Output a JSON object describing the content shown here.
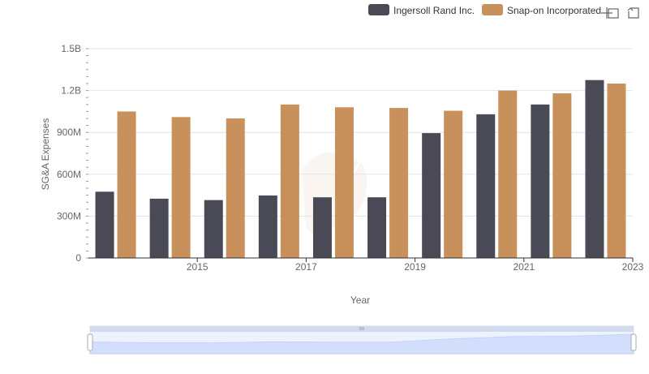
{
  "legend": {
    "items": [
      {
        "name": "Ingersoll Rand Inc.",
        "color": "#4a4a57"
      },
      {
        "name": "Snap-on Incorporated",
        "color": "#c8915c"
      }
    ]
  },
  "toolbox": {
    "icons": [
      "zoom-icon",
      "restore-icon"
    ]
  },
  "chart_data": {
    "type": "bar",
    "xlabel": "Year",
    "ylabel": "SG&A Expenses",
    "categories": [
      "2014",
      "2015",
      "2016",
      "2017",
      "2018",
      "2019",
      "2020",
      "2021",
      "2022",
      "2023"
    ],
    "x_tick_labels": [
      "2015",
      "2017",
      "2019",
      "2021",
      "2023"
    ],
    "y_tick_labels": [
      "0",
      "300M",
      "600M",
      "900M",
      "1.2B",
      "1.5B"
    ],
    "ylim": [
      0,
      1500000000
    ],
    "grid": true,
    "legend_position": "top-right",
    "series": [
      {
        "name": "Ingersoll Rand Inc.",
        "color": "#4a4a57",
        "values": [
          475000000,
          425000000,
          415000000,
          448000000,
          435000000,
          435000000,
          895000000,
          1030000000,
          1100000000,
          1275000000
        ]
      },
      {
        "name": "Snap-on Incorporated",
        "color": "#c8915c",
        "values": [
          1050000000,
          1010000000,
          1000000000,
          1100000000,
          1080000000,
          1075000000,
          1055000000,
          1200000000,
          1180000000,
          1250000000
        ]
      }
    ]
  }
}
